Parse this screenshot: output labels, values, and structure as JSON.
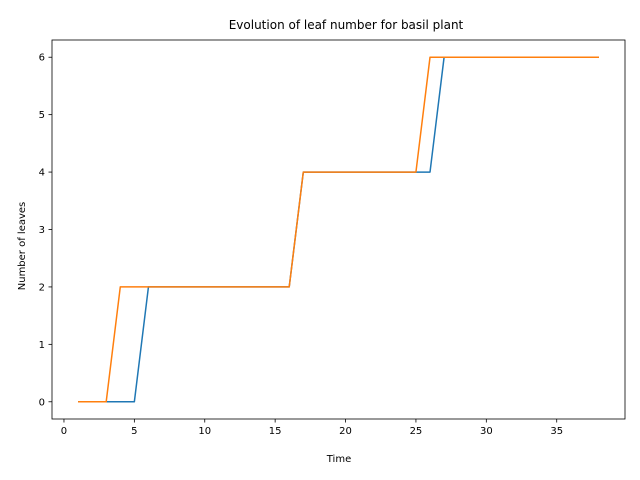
{
  "chart_data": {
    "type": "line",
    "title": "Evolution of leaf number for basil plant",
    "xlabel": "Time",
    "ylabel": "Number of leaves",
    "xlim": [
      -0.85,
      39.85
    ],
    "ylim": [
      -0.3,
      6.3
    ],
    "xticks": [
      0,
      5,
      10,
      15,
      20,
      25,
      30,
      35
    ],
    "yticks": [
      0,
      1,
      2,
      3,
      4,
      5,
      6
    ],
    "grid": false,
    "legend": "none",
    "series": [
      {
        "color": "#1f77b4",
        "x": [
          1,
          2,
          3,
          4,
          5,
          6,
          7,
          8,
          9,
          10,
          11,
          12,
          13,
          14,
          15,
          16,
          17,
          18,
          19,
          20,
          21,
          22,
          23,
          24,
          25,
          26,
          27,
          28,
          29,
          30,
          31,
          32,
          33,
          34,
          35,
          36,
          37,
          38
        ],
        "y": [
          0,
          0,
          0,
          0,
          0,
          2,
          2,
          2,
          2,
          2,
          2,
          2,
          2,
          2,
          2,
          2,
          4,
          4,
          4,
          4,
          4,
          4,
          4,
          4,
          4,
          4,
          6,
          6,
          6,
          6,
          6,
          6,
          6,
          6,
          6,
          6,
          6,
          6
        ]
      },
      {
        "color": "#ff7f0e",
        "x": [
          1,
          2,
          3,
          4,
          5,
          6,
          7,
          8,
          9,
          10,
          11,
          12,
          13,
          14,
          15,
          16,
          17,
          18,
          19,
          20,
          21,
          22,
          23,
          24,
          25,
          26,
          27,
          28,
          29,
          30,
          31,
          32,
          33,
          34,
          35,
          36,
          37,
          38
        ],
        "y": [
          0,
          0,
          0,
          2,
          2,
          2,
          2,
          2,
          2,
          2,
          2,
          2,
          2,
          2,
          2,
          2,
          4,
          4,
          4,
          4,
          4,
          4,
          4,
          4,
          4,
          6,
          6,
          6,
          6,
          6,
          6,
          6,
          6,
          6,
          6,
          6,
          6,
          6
        ]
      }
    ]
  }
}
